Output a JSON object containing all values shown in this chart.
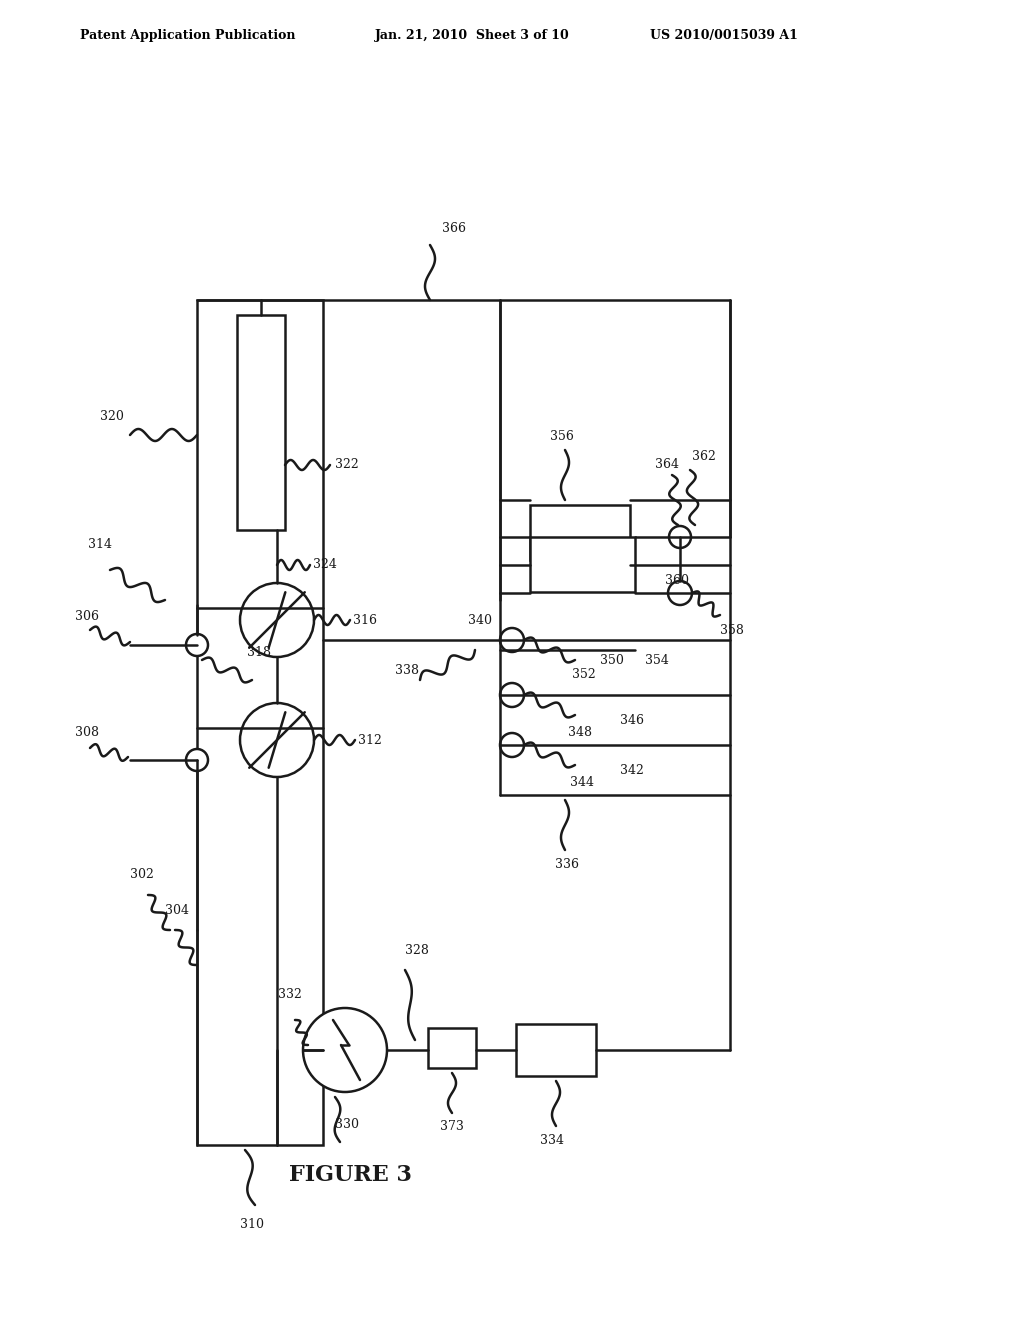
{
  "header_left": "Patent Application Publication",
  "header_mid": "Jan. 21, 2010  Sheet 3 of 10",
  "header_right": "US 2010/0015039 A1",
  "figure_label": "FIGURE 3",
  "bg_color": "#ffffff",
  "lc": "#1a1a1a",
  "lw": 1.8
}
